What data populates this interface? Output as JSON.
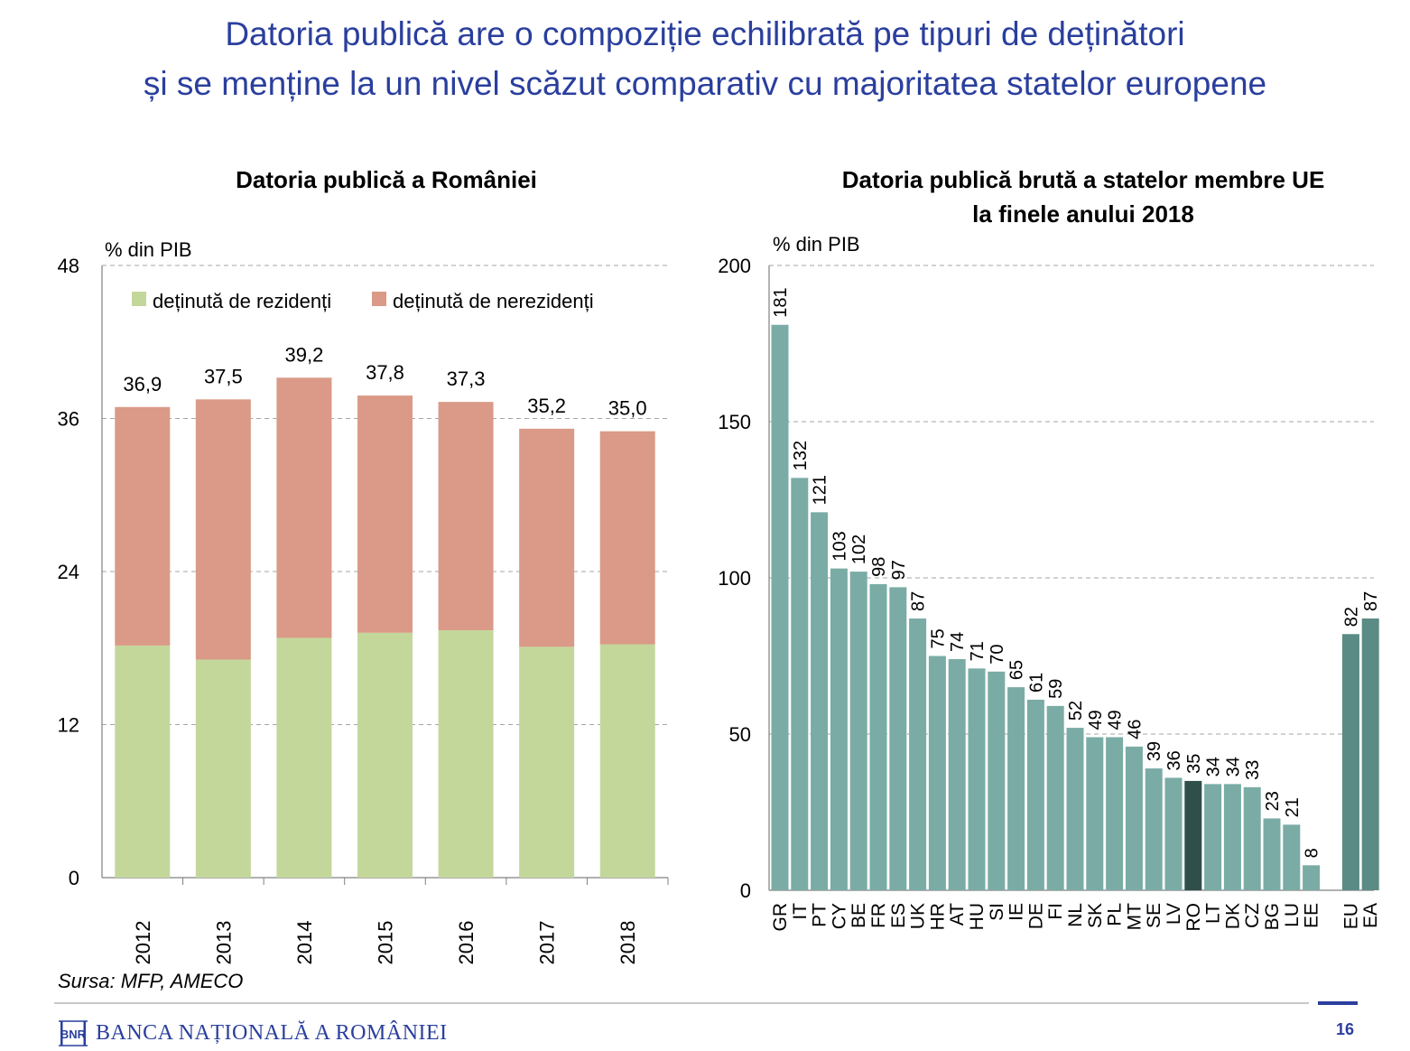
{
  "slide_title": {
    "line1": "Datoria publică are o compoziție echilibrată pe tipuri de deținători",
    "line2": "și se menține la un nivel scăzut comparativ cu majoritatea statelor europene"
  },
  "left_chart": {
    "title": "Datoria publică a României"
  },
  "right_chart": {
    "title_line1": "Datoria publică brută a statelor membre UE",
    "title_line2": "la finele anului 2018"
  },
  "source": "Sursa: MFP, AMECO",
  "footer": {
    "bank_name": "BANCA NAȚIONALĂ A ROMÂNIEI",
    "logo_text": "BNR",
    "page_number": "16"
  },
  "colors": {
    "title_blue": "#2a3f9d",
    "residents": "#c4d79b",
    "nonresidents": "#da9a87",
    "country_bar": "#7aaca5",
    "romania_bar": "#2f4f4b",
    "aggregate_bar": "#5a8b84",
    "grid": "#a6a6a6"
  },
  "icons": {
    "logo": "bnr-monogram-icon"
  },
  "chart_data": [
    {
      "type": "bar",
      "stacked": true,
      "categories": [
        "2012",
        "2013",
        "2014",
        "2015",
        "2016",
        "2017",
        "2018"
      ],
      "series": [
        {
          "name": "deținută de rezidenți",
          "values": [
            18.2,
            17.1,
            18.8,
            19.2,
            19.4,
            18.1,
            18.3
          ]
        },
        {
          "name": "deținută de nerezidenți",
          "values": [
            18.7,
            20.4,
            20.4,
            18.6,
            17.9,
            17.1,
            16.7
          ]
        }
      ],
      "totals": [
        36.9,
        37.5,
        39.2,
        37.8,
        37.3,
        35.2,
        35.0
      ],
      "total_labels": [
        "36,9",
        "37,5",
        "39,2",
        "37,8",
        "37,3",
        "35,2",
        "35,0"
      ],
      "ylabel": "% din PIB",
      "ylim": [
        0,
        48
      ],
      "yticks": [
        0,
        12,
        24,
        36,
        48
      ],
      "grid": true,
      "legend_position": "top"
    },
    {
      "type": "bar",
      "categories": [
        "GR",
        "IT",
        "PT",
        "CY",
        "BE",
        "FR",
        "ES",
        "UK",
        "HR",
        "AT",
        "HU",
        "SI",
        "IE",
        "DE",
        "FI",
        "NL",
        "SK",
        "PL",
        "MT",
        "SE",
        "LV",
        "RO",
        "LT",
        "DK",
        "CZ",
        "BG",
        "LU",
        "EE",
        "EU",
        "EA"
      ],
      "values": [
        181,
        132,
        121,
        103,
        102,
        98,
        97,
        87,
        75,
        74,
        71,
        70,
        65,
        61,
        59,
        52,
        49,
        49,
        46,
        39,
        36,
        35,
        34,
        34,
        33,
        23,
        21,
        8,
        82,
        87
      ],
      "highlighted": "RO",
      "aggregates": [
        "EU",
        "EA"
      ],
      "ylabel": "% din PIB",
      "ylim": [
        0,
        200
      ],
      "yticks": [
        0,
        50,
        100,
        150,
        200
      ],
      "grid": true
    }
  ]
}
